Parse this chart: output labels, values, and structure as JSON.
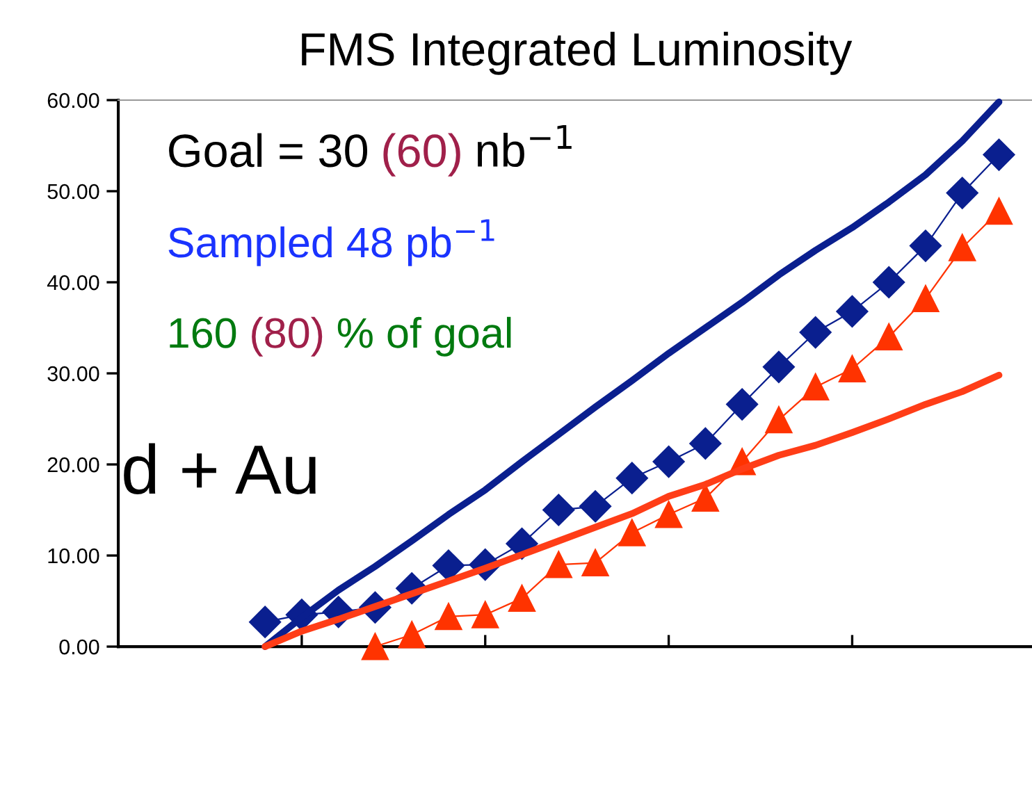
{
  "chart_data": {
    "type": "line",
    "title": "FMS Integrated Luminosity",
    "categories": [
      null,
      null,
      null,
      null,
      null,
      null,
      null,
      null,
      null,
      null,
      null,
      null,
      null,
      null,
      null,
      null,
      null,
      null,
      null,
      null,
      null,
      null,
      null,
      null,
      null
    ],
    "ylim": [
      0,
      60
    ],
    "yticks": [
      {
        "value": 0,
        "label": "0.00"
      },
      {
        "value": 10,
        "label": "10.00"
      },
      {
        "value": 20,
        "label": "20.00"
      },
      {
        "value": 30,
        "label": "30.00"
      },
      {
        "value": 40,
        "label": "40.00"
      },
      {
        "value": 50,
        "label": "50.00"
      },
      {
        "value": 60,
        "label": "60.00"
      }
    ],
    "tick_labels": "y",
    "grid": false,
    "legend": false,
    "series": [
      {
        "color": "#0a1f8f",
        "marker": "none",
        "values": [
          null,
          null,
          null,
          null,
          0,
          3.2,
          6.2,
          8.8,
          11.6,
          14.5,
          17.2,
          20.3,
          23.3,
          26.3,
          29.2,
          32.2,
          35.0,
          37.8,
          40.8,
          43.5,
          46.0,
          48.8,
          51.8,
          55.5,
          59.8
        ]
      },
      {
        "color": "#ff3d17",
        "marker": "none",
        "values": [
          null,
          null,
          null,
          null,
          0,
          1.7,
          3.0,
          4.4,
          5.8,
          7.2,
          8.6,
          10.1,
          11.6,
          13.1,
          14.6,
          16.5,
          17.8,
          19.5,
          21.0,
          22.1,
          23.5,
          25.0,
          26.6,
          28.0,
          29.8
        ]
      },
      {
        "color": "#0a1f8f",
        "marker": "diamond",
        "values": [
          null,
          null,
          null,
          null,
          2.7,
          3.5,
          3.8,
          4.3,
          6.4,
          8.9,
          9.0,
          11.3,
          15.0,
          15.4,
          18.5,
          20.3,
          22.3,
          26.6,
          30.7,
          34.5,
          36.8,
          40.0,
          44.0,
          49.8,
          54.0
        ]
      },
      {
        "color": "#ff3300",
        "marker": "triangle",
        "values": [
          null,
          null,
          null,
          null,
          null,
          null,
          null,
          0,
          1.3,
          3.3,
          3.5,
          5.3,
          9.0,
          9.2,
          12.5,
          14.5,
          16.3,
          20.3,
          24.9,
          28.5,
          30.5,
          34.0,
          38.2,
          43.8,
          47.8
        ]
      }
    ],
    "annotations": [
      "Goal = 30",
      "(60)",
      "nb$^{−1}$",
      "Sampled 48 pb$^{−1}$",
      "160",
      "(80)",
      "% of goal",
      "d + Au"
    ]
  }
}
